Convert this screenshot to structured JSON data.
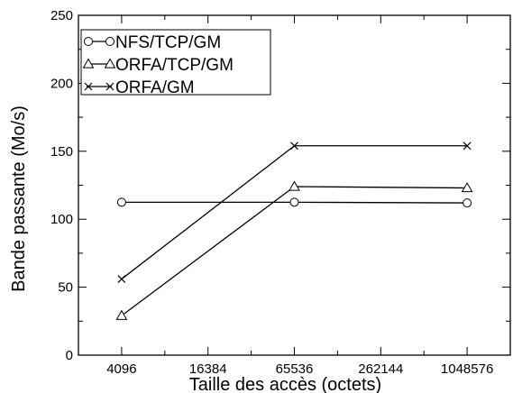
{
  "chart_data": {
    "type": "line",
    "xlabel": "Taille des accès (octets)",
    "ylabel": "Bande passante (Mo/s)",
    "x_scale": "log2",
    "xlim": [
      2048,
      2097152
    ],
    "ylim": [
      0,
      250
    ],
    "x_ticks": [
      4096,
      16384,
      65536,
      262144,
      1048576
    ],
    "x_tick_labels": [
      "4096",
      "16384",
      "65536",
      "262144",
      "1048576"
    ],
    "y_ticks": [
      0,
      50,
      100,
      150,
      200,
      250
    ],
    "y_tick_labels": [
      "0",
      "50",
      "100",
      "150",
      "200",
      "250"
    ],
    "grid": false,
    "legend_position": "top-left",
    "series": [
      {
        "name": "NFS/TCP/GM",
        "marker": "circle",
        "color": "#000000",
        "x": [
          4096,
          65536,
          1048576
        ],
        "y": [
          112.5,
          112.5,
          112.0
        ]
      },
      {
        "name": "ORFA/TCP/GM",
        "marker": "triangle",
        "color": "#000000",
        "x": [
          4096,
          65536,
          1048576
        ],
        "y": [
          29,
          124,
          123
        ]
      },
      {
        "name": "ORFA/GM",
        "marker": "x",
        "color": "#000000",
        "x": [
          4096,
          65536,
          1048576
        ],
        "y": [
          56,
          154,
          154
        ]
      }
    ]
  }
}
